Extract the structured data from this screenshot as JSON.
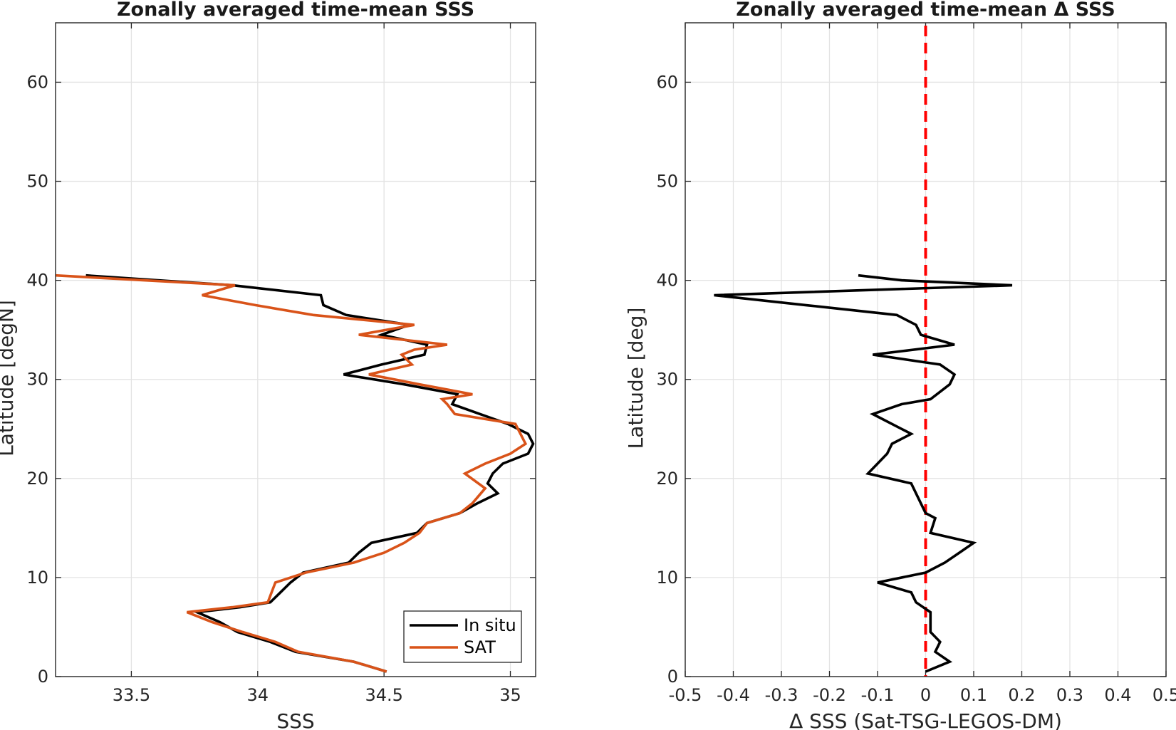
{
  "chart_data": [
    {
      "type": "line",
      "title": "Zonally averaged time-mean SSS",
      "xlabel": "SSS",
      "ylabel": "Latitude [degN]",
      "xlim": [
        33.2,
        35.1
      ],
      "ylim": [
        0,
        66
      ],
      "xticks": [
        33.5,
        34,
        34.5,
        35
      ],
      "xtick_labels": [
        "33.5",
        "34",
        "34.5",
        "35"
      ],
      "yticks": [
        0,
        10,
        20,
        30,
        40,
        50,
        60
      ],
      "ytick_labels": [
        "0",
        "10",
        "20",
        "30",
        "40",
        "50",
        "60"
      ],
      "grid": true,
      "legend_position": "bottom-right",
      "series": [
        {
          "name": "In situ",
          "color": "#000000",
          "points": [
            [
              34.51,
              0.5
            ],
            [
              34.38,
              1.5
            ],
            [
              34.15,
              2.5
            ],
            [
              34.05,
              3.5
            ],
            [
              33.92,
              4.5
            ],
            [
              33.85,
              5.5
            ],
            [
              33.76,
              6.5
            ],
            [
              33.93,
              7.0
            ],
            [
              34.05,
              7.5
            ],
            [
              34.09,
              8.5
            ],
            [
              34.13,
              9.5
            ],
            [
              34.18,
              10.5
            ],
            [
              34.36,
              11.5
            ],
            [
              34.4,
              12.5
            ],
            [
              34.45,
              13.5
            ],
            [
              34.63,
              14.5
            ],
            [
              34.67,
              15.5
            ],
            [
              34.8,
              16.5
            ],
            [
              34.87,
              17.5
            ],
            [
              34.95,
              18.5
            ],
            [
              34.91,
              19.5
            ],
            [
              34.93,
              20.5
            ],
            [
              34.97,
              21.5
            ],
            [
              35.07,
              22.5
            ],
            [
              35.09,
              23.5
            ],
            [
              35.07,
              24.5
            ],
            [
              34.99,
              25.5
            ],
            [
              34.88,
              26.5
            ],
            [
              34.77,
              27.5
            ],
            [
              34.79,
              28.5
            ],
            [
              34.58,
              29.5
            ],
            [
              34.34,
              30.5
            ],
            [
              34.49,
              31.5
            ],
            [
              34.66,
              32.5
            ],
            [
              34.67,
              33.5
            ],
            [
              34.49,
              34.5
            ],
            [
              34.6,
              35.5
            ],
            [
              34.35,
              36.5
            ],
            [
              34.26,
              37.5
            ],
            [
              34.25,
              38.5
            ],
            [
              33.9,
              39.5
            ],
            [
              33.32,
              40.5
            ]
          ]
        },
        {
          "name": "SAT",
          "color": "#D95319",
          "points": [
            [
              34.51,
              0.5
            ],
            [
              34.38,
              1.5
            ],
            [
              34.16,
              2.5
            ],
            [
              34.07,
              3.5
            ],
            [
              33.94,
              4.5
            ],
            [
              33.82,
              5.5
            ],
            [
              33.72,
              6.5
            ],
            [
              33.9,
              7.0
            ],
            [
              34.04,
              7.5
            ],
            [
              34.07,
              9.5
            ],
            [
              34.19,
              10.5
            ],
            [
              34.38,
              11.5
            ],
            [
              34.5,
              12.5
            ],
            [
              34.58,
              13.5
            ],
            [
              34.64,
              14.5
            ],
            [
              34.67,
              15.5
            ],
            [
              34.8,
              16.5
            ],
            [
              34.85,
              17.5
            ],
            [
              34.9,
              19.0
            ],
            [
              34.82,
              20.5
            ],
            [
              34.9,
              21.5
            ],
            [
              35.0,
              22.5
            ],
            [
              35.06,
              23.5
            ],
            [
              35.02,
              25.5
            ],
            [
              34.78,
              26.5
            ],
            [
              34.75,
              27.5
            ],
            [
              34.73,
              28.0
            ],
            [
              34.85,
              28.5
            ],
            [
              34.64,
              29.5
            ],
            [
              34.44,
              30.5
            ],
            [
              34.61,
              31.5
            ],
            [
              34.57,
              32.5
            ],
            [
              34.62,
              33.0
            ],
            [
              34.75,
              33.5
            ],
            [
              34.4,
              34.5
            ],
            [
              34.62,
              35.5
            ],
            [
              34.22,
              36.5
            ],
            [
              33.99,
              37.5
            ],
            [
              33.78,
              38.5
            ],
            [
              33.91,
              39.5
            ],
            [
              33.2,
              40.5
            ]
          ]
        }
      ]
    },
    {
      "type": "line",
      "title": "Zonally averaged time-mean Δ SSS",
      "xlabel": "Δ SSS (Sat-TSG-LEGOS-DM)",
      "ylabel": "Latitude [deg]",
      "xlim": [
        -0.5,
        0.5
      ],
      "ylim": [
        0,
        66
      ],
      "xticks": [
        -0.5,
        -0.4,
        -0.3,
        -0.2,
        -0.1,
        0,
        0.1,
        0.2,
        0.3,
        0.4,
        0.5
      ],
      "xtick_labels": [
        "-0.5",
        "-0.4",
        "-0.3",
        "-0.2",
        "-0.1",
        "0",
        "0.1",
        "0.2",
        "0.3",
        "0.4",
        "0.5"
      ],
      "yticks": [
        0,
        10,
        20,
        30,
        40,
        50,
        60
      ],
      "ytick_labels": [
        "0",
        "10",
        "20",
        "30",
        "40",
        "50",
        "60"
      ],
      "grid": true,
      "reference_line": {
        "x": 0,
        "color": "#ff0000",
        "style": "dashed"
      },
      "series": [
        {
          "color": "#000000",
          "points": [
            [
              0.0,
              0.5
            ],
            [
              0.05,
              1.5
            ],
            [
              0.02,
              2.5
            ],
            [
              0.03,
              3.5
            ],
            [
              0.01,
              4.5
            ],
            [
              0.01,
              5.5
            ],
            [
              0.01,
              6.5
            ],
            [
              -0.02,
              7.5
            ],
            [
              -0.03,
              8.5
            ],
            [
              -0.1,
              9.5
            ],
            [
              0.0,
              10.5
            ],
            [
              0.04,
              11.5
            ],
            [
              0.07,
              12.5
            ],
            [
              0.1,
              13.5
            ],
            [
              0.01,
              14.5
            ],
            [
              0.02,
              16.0
            ],
            [
              0.0,
              16.5
            ],
            [
              -0.02,
              18.5
            ],
            [
              -0.03,
              19.5
            ],
            [
              -0.12,
              20.5
            ],
            [
              -0.1,
              21.5
            ],
            [
              -0.08,
              22.5
            ],
            [
              -0.07,
              23.5
            ],
            [
              -0.03,
              24.5
            ],
            [
              -0.05,
              25.0
            ],
            [
              -0.11,
              26.5
            ],
            [
              -0.05,
              27.5
            ],
            [
              0.01,
              28.0
            ],
            [
              0.05,
              29.5
            ],
            [
              0.06,
              30.5
            ],
            [
              0.03,
              31.5
            ],
            [
              -0.11,
              32.5
            ],
            [
              0.06,
              33.5
            ],
            [
              -0.01,
              34.5
            ],
            [
              -0.02,
              35.5
            ],
            [
              -0.06,
              36.5
            ],
            [
              -0.25,
              37.5
            ],
            [
              -0.44,
              38.5
            ],
            [
              0.18,
              39.5
            ],
            [
              -0.05,
              40.0
            ],
            [
              -0.14,
              40.5
            ]
          ]
        }
      ]
    }
  ]
}
